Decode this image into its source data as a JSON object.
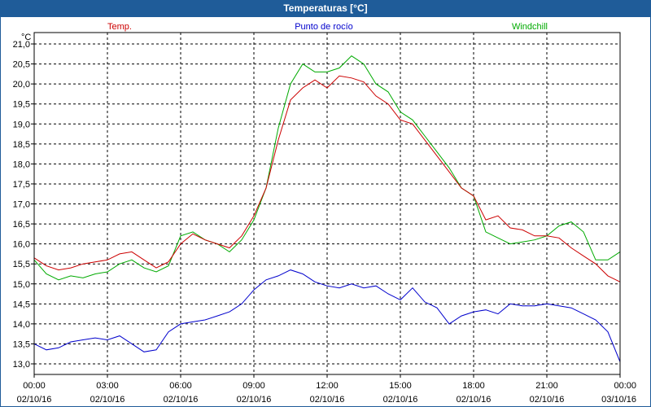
{
  "window": {
    "title": "Temperaturas [°C]"
  },
  "colors": {
    "titlebar": "#1f5c99",
    "temp": "#cc0000",
    "dew": "#0000cc",
    "windchill": "#00aa00"
  },
  "chart_data": {
    "type": "line",
    "title": "Temperaturas [°C]",
    "ylabel": "°C",
    "ylim": [
      12.8,
      21.2
    ],
    "xlim": [
      0,
      24
    ],
    "grid": true,
    "legend_placement": "top",
    "y_ticks": [
      "21,0",
      "20,5",
      "20,0",
      "19,5",
      "19,0",
      "18,5",
      "18,0",
      "17,5",
      "17,0",
      "16,5",
      "16,0",
      "15,5",
      "15,0",
      "14,5",
      "14,0",
      "13,5",
      "13,0"
    ],
    "x_ticks": [
      {
        "time": "00:00",
        "date": "02/10/16"
      },
      {
        "time": "03:00",
        "date": "02/10/16"
      },
      {
        "time": "06:00",
        "date": "02/10/16"
      },
      {
        "time": "09:00",
        "date": "02/10/16"
      },
      {
        "time": "12:00",
        "date": "02/10/16"
      },
      {
        "time": "15:00",
        "date": "02/10/16"
      },
      {
        "time": "18:00",
        "date": "02/10/16"
      },
      {
        "time": "21:00",
        "date": "02/10/16"
      },
      {
        "time": "00:00",
        "date": "03/10/16"
      }
    ],
    "series": [
      {
        "name": "Temp.",
        "color": "#cc0000",
        "x": [
          0,
          0.5,
          1,
          1.5,
          2,
          2.5,
          3,
          3.5,
          4,
          4.5,
          5,
          5.5,
          6,
          6.5,
          7,
          7.5,
          8,
          8.5,
          9,
          9.5,
          10,
          10.5,
          11,
          11.5,
          12,
          12.5,
          13,
          13.5,
          14,
          14.5,
          15,
          15.5,
          16,
          16.5,
          17,
          17.5,
          18,
          18.5,
          19,
          19.5,
          20,
          20.5,
          21,
          21.5,
          22,
          22.5,
          23,
          23.5,
          24
        ],
        "values": [
          15.65,
          15.45,
          15.35,
          15.4,
          15.5,
          15.55,
          15.6,
          15.75,
          15.8,
          15.6,
          15.4,
          15.55,
          16.0,
          16.25,
          16.1,
          16.0,
          15.9,
          16.2,
          16.7,
          17.4,
          18.6,
          19.6,
          19.9,
          20.1,
          19.9,
          20.2,
          20.15,
          20.05,
          19.7,
          19.5,
          19.1,
          19.0,
          18.6,
          18.2,
          17.8,
          17.4,
          17.2,
          16.6,
          16.7,
          16.4,
          16.35,
          16.2,
          16.2,
          16.15,
          15.9,
          15.7,
          15.5,
          15.2,
          15.05
        ]
      },
      {
        "name": "Punto de rocío",
        "color": "#0000cc",
        "x": [
          0,
          0.5,
          1,
          1.5,
          2,
          2.5,
          3,
          3.5,
          4,
          4.5,
          5,
          5.5,
          6,
          6.5,
          7,
          7.5,
          8,
          8.5,
          9,
          9.5,
          10,
          10.5,
          11,
          11.5,
          12,
          12.5,
          13,
          13.5,
          14,
          14.5,
          15,
          15.5,
          16,
          16.5,
          17,
          17.5,
          18,
          18.5,
          19,
          19.5,
          20,
          20.5,
          21,
          21.5,
          22,
          22.5,
          23,
          23.5,
          24
        ],
        "values": [
          13.5,
          13.35,
          13.4,
          13.55,
          13.6,
          13.65,
          13.6,
          13.7,
          13.5,
          13.3,
          13.35,
          13.8,
          14.0,
          14.05,
          14.1,
          14.2,
          14.3,
          14.5,
          14.85,
          15.1,
          15.2,
          15.35,
          15.25,
          15.05,
          14.95,
          14.9,
          15.0,
          14.9,
          14.95,
          14.75,
          14.6,
          14.9,
          14.55,
          14.4,
          14.0,
          14.2,
          14.3,
          14.35,
          14.25,
          14.5,
          14.45,
          14.45,
          14.5,
          14.45,
          14.4,
          14.25,
          14.1,
          13.8,
          13.05
        ]
      },
      {
        "name": "Windchill",
        "color": "#00aa00",
        "x": [
          0,
          0.5,
          1,
          1.5,
          2,
          2.5,
          3,
          3.5,
          4,
          4.5,
          5,
          5.5,
          6,
          6.5,
          7,
          7.5,
          8,
          8.5,
          9,
          9.5,
          10,
          10.5,
          11,
          11.5,
          12,
          12.5,
          13,
          13.5,
          14,
          14.5,
          15,
          15.5,
          16,
          16.5,
          17,
          17.5,
          18,
          18.5,
          19,
          19.5,
          20,
          20.5,
          21,
          21.5,
          22,
          22.5,
          23,
          23.5,
          24
        ],
        "values": [
          15.6,
          15.25,
          15.1,
          15.2,
          15.15,
          15.25,
          15.3,
          15.5,
          15.6,
          15.4,
          15.3,
          15.45,
          16.2,
          16.3,
          16.1,
          16.0,
          15.8,
          16.1,
          16.6,
          17.4,
          18.9,
          20.0,
          20.5,
          20.3,
          20.3,
          20.4,
          20.7,
          20.5,
          20.0,
          19.8,
          19.3,
          19.1,
          18.7,
          18.3,
          17.9,
          17.4,
          17.2,
          16.3,
          16.15,
          16.0,
          16.05,
          16.1,
          16.2,
          16.45,
          16.55,
          16.3,
          15.6,
          15.6,
          15.8
        ]
      }
    ]
  }
}
